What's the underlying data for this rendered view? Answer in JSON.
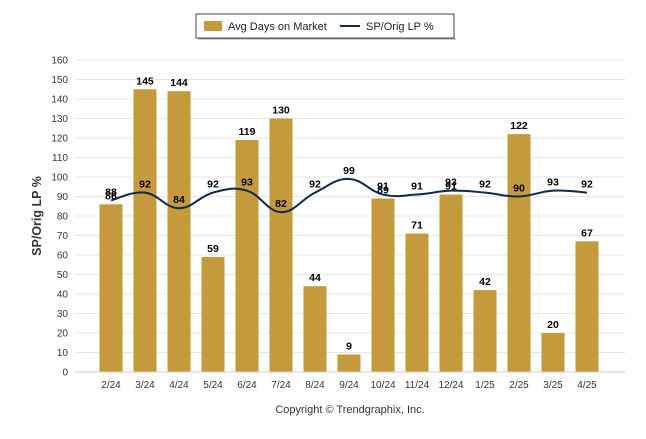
{
  "chart_data": {
    "type": "bar",
    "categories": [
      "2/24",
      "3/24",
      "4/24",
      "5/24",
      "6/24",
      "7/24",
      "8/24",
      "9/24",
      "10/24",
      "11/24",
      "12/24",
      "1/25",
      "2/25",
      "3/25",
      "4/25"
    ],
    "series": [
      {
        "name": "Avg Days on Market",
        "type": "bar",
        "color": "#C49A3C",
        "values": [
          86,
          145,
          144,
          59,
          119,
          130,
          44,
          9,
          89,
          71,
          91,
          42,
          122,
          20,
          67
        ]
      },
      {
        "name": "SP/Orig LP %",
        "type": "line",
        "color": "#0D2A4D",
        "values": [
          88,
          92,
          84,
          92,
          93,
          82,
          92,
          99,
          91,
          91,
          93,
          92,
          90,
          93,
          92
        ]
      }
    ],
    "ylabel": "SP/Orig LP %",
    "ylim": [
      0,
      160
    ],
    "yticks": [
      0,
      10,
      20,
      30,
      40,
      50,
      60,
      70,
      80,
      90,
      100,
      110,
      120,
      130,
      140,
      150,
      160
    ],
    "grid": true,
    "legend": "top-center"
  },
  "footer": "Copyright © Trendgraphix, Inc."
}
